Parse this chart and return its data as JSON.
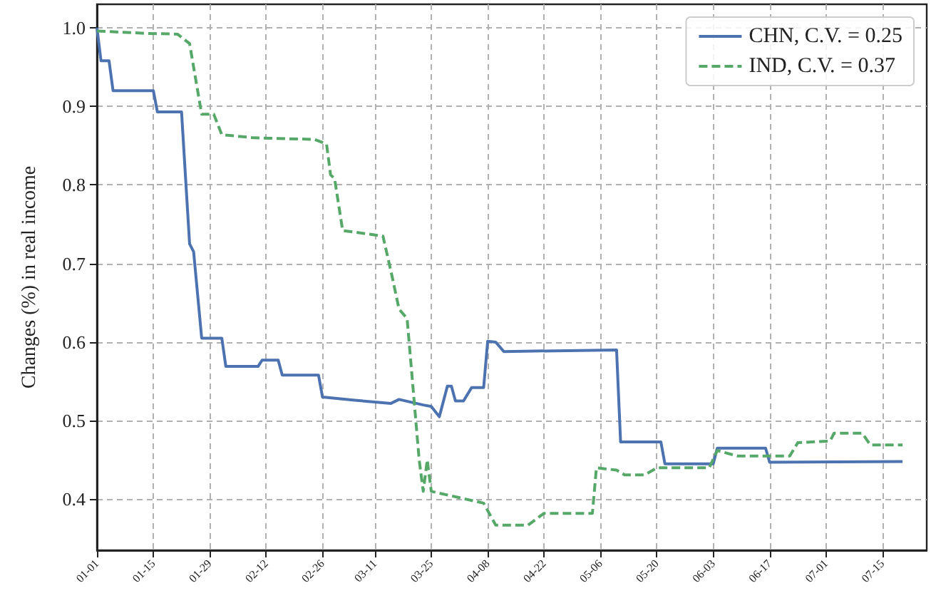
{
  "chart_data": {
    "type": "line",
    "ylabel": "Changes (%) in real income",
    "xlim": [
      "--01-01",
      "--07-26"
    ],
    "xticks": [
      {
        "value": "--01-01",
        "label": "01-01"
      },
      {
        "value": "--01-15",
        "label": "01-15"
      },
      {
        "value": "--01-29",
        "label": "01-29"
      },
      {
        "value": "--02-12",
        "label": "02-12"
      },
      {
        "value": "--02-26",
        "label": "02-26"
      },
      {
        "value": "--03-11",
        "label": "03-11"
      },
      {
        "value": "--03-25",
        "label": "03-25"
      },
      {
        "value": "--04-08",
        "label": "04-08"
      },
      {
        "value": "--04-22",
        "label": "04-22"
      },
      {
        "value": "--05-06",
        "label": "05-06"
      },
      {
        "value": "--05-20",
        "label": "05-20"
      },
      {
        "value": "--06-03",
        "label": "06-03"
      },
      {
        "value": "--06-17",
        "label": "06-17"
      },
      {
        "value": "--07-01",
        "label": "07-01"
      },
      {
        "value": "--07-15",
        "label": "07-15"
      }
    ],
    "ylim": [
      0.335,
      1.03
    ],
    "yticks": [
      0.4,
      0.5,
      0.6,
      0.7,
      0.8,
      0.9,
      {
        "value": 1,
        "label": "1.0"
      }
    ],
    "grid": true,
    "legend": "top right",
    "marker": "none",
    "series": [
      {
        "name": "CHN, C.V. = 0.25",
        "color": "#4c72b0",
        "line_style": "solid",
        "x": [
          "--01-01",
          "--01-02",
          "--01-04",
          "--01-05",
          "--01-15",
          "--01-16",
          "--01-22",
          "--01-24",
          "--01-25",
          "--01-27",
          "--02-01",
          "--02-02",
          "--02-10",
          "--02-11",
          "--02-15",
          "--02-16",
          "--02-25",
          "--02-26",
          "--03-06",
          "--03-15",
          "--03-17",
          "--03-23",
          "--03-25",
          "--03-27",
          "--03-29",
          "--03-30",
          "--03-31",
          "--04-02",
          "--04-04",
          "--04-07",
          "--04-08",
          "--04-10",
          "--04-12",
          "--05-10",
          "--05-11",
          "--05-21",
          "--05-22",
          "--06-03",
          "--06-04",
          "--06-16",
          "--06-17",
          "--07-20"
        ],
        "values": [
          1.0,
          0.958,
          0.958,
          0.92,
          0.92,
          0.893,
          0.893,
          0.725,
          0.715,
          0.605,
          0.605,
          0.569,
          0.569,
          0.577,
          0.577,
          0.558,
          0.558,
          0.53,
          0.526,
          0.522,
          0.527,
          0.52,
          0.518,
          0.505,
          0.544,
          0.544,
          0.525,
          0.525,
          0.542,
          0.542,
          0.601,
          0.6,
          0.588,
          0.59,
          0.473,
          0.473,
          0.445,
          0.445,
          0.465,
          0.465,
          0.447,
          0.448
        ]
      },
      {
        "name": "IND, C.V. = 0.37",
        "color": "#55a868",
        "line_style": "dashed",
        "x": [
          "--01-01",
          "--01-13",
          "--01-21",
          "--01-24",
          "--01-27",
          "--01-30",
          "--02-01",
          "--02-09",
          "--02-24",
          "--02-27",
          "--02-28",
          "--03-01",
          "--03-03",
          "--03-13",
          "--03-15",
          "--03-17",
          "--03-19",
          "--03-22",
          "--03-23",
          "--03-24",
          "--03-25",
          "--04-07",
          "--04-10",
          "--04-18",
          "--04-22",
          "--05-04",
          "--05-05",
          "--05-10",
          "--05-12",
          "--05-17",
          "--05-20",
          "--06-02",
          "--06-04",
          "--06-09",
          "--06-22",
          "--06-24",
          "--07-02",
          "--07-03",
          "--07-10",
          "--07-12",
          "--07-20"
        ],
        "values": [
          0.996,
          0.993,
          0.992,
          0.98,
          0.89,
          0.89,
          0.864,
          0.86,
          0.858,
          0.852,
          0.813,
          0.808,
          0.742,
          0.735,
          0.69,
          0.642,
          0.63,
          0.45,
          0.41,
          0.45,
          0.41,
          0.395,
          0.367,
          0.367,
          0.382,
          0.382,
          0.44,
          0.437,
          0.431,
          0.431,
          0.44,
          0.44,
          0.462,
          0.455,
          0.455,
          0.472,
          0.474,
          0.484,
          0.484,
          0.469,
          0.469
        ]
      }
    ]
  }
}
